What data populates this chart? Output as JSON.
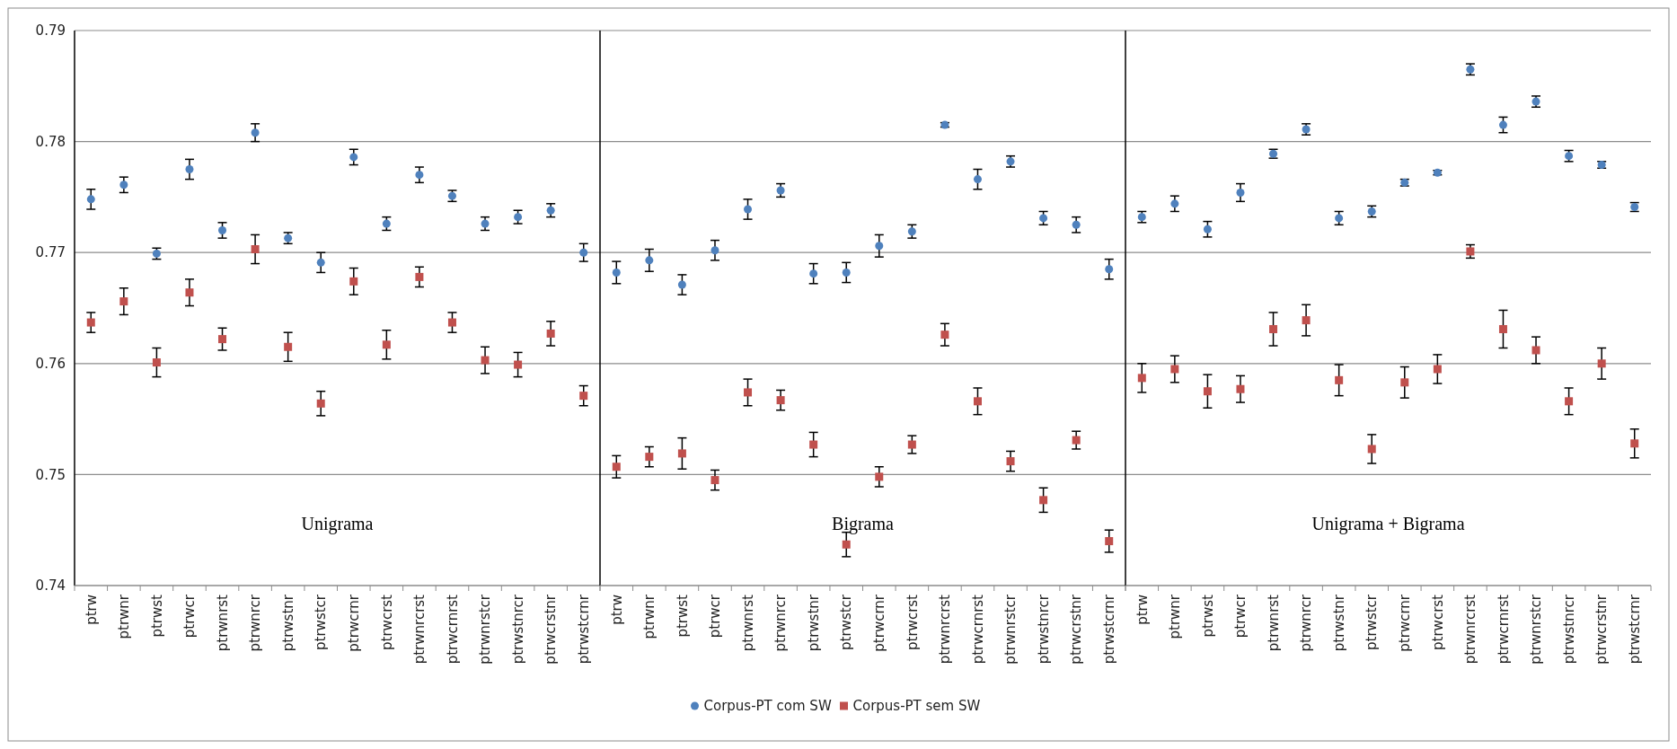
{
  "chart_data": [
    {
      "type": "scatter",
      "categories": [
        "ptrw",
        "ptrwnr",
        "ptrwst",
        "ptrwcr",
        "ptrwnrst",
        "ptrwnrcr",
        "ptrwstnr",
        "ptrwstcr",
        "ptrwcrnr",
        "ptrwcrst",
        "ptrwnrcrst",
        "ptrwcrnrst",
        "ptrwnrstcr",
        "ptrwstnrcr",
        "ptrwcrstnr",
        "ptrwstcrnr"
      ],
      "ylim": [
        0.74,
        0.79
      ],
      "yticks": [
        0.74,
        0.75,
        0.76,
        0.77,
        0.78,
        0.79
      ],
      "grid": "y",
      "legend": "bottom",
      "annotations": [
        "Unigrama"
      ],
      "series": [
        {
          "name": "Corpus-PT com SW",
          "color": "#4f81bd",
          "marker": "circle",
          "values": [
            0.7748,
            0.7761,
            0.7699,
            0.7775,
            0.772,
            0.7808,
            0.7713,
            0.7691,
            0.7786,
            0.7726,
            0.777,
            0.7751,
            0.7726,
            0.7732,
            0.7738,
            0.77
          ],
          "errors": [
            0.0009,
            0.0007,
            0.0005,
            0.0009,
            0.0007,
            0.0008,
            0.0005,
            0.0009,
            0.0007,
            0.0006,
            0.0007,
            0.0005,
            0.0006,
            0.0006,
            0.0006,
            0.0008
          ]
        },
        {
          "name": "Corpus-PT sem SW",
          "color": "#c0504d",
          "marker": "square",
          "values": [
            0.7637,
            0.7656,
            0.7601,
            0.7664,
            0.7622,
            0.7703,
            0.7615,
            0.7564,
            0.7674,
            0.7617,
            0.7678,
            0.7637,
            0.7603,
            0.7599,
            0.7627,
            0.7571
          ],
          "errors": [
            0.0009,
            0.0012,
            0.0013,
            0.0012,
            0.001,
            0.0013,
            0.0013,
            0.0011,
            0.0012,
            0.0013,
            0.0009,
            0.0009,
            0.0012,
            0.0011,
            0.0011,
            0.0009
          ]
        }
      ]
    },
    {
      "type": "scatter",
      "categories": [
        "ptrw",
        "ptrwnr",
        "ptrwst",
        "ptrwcr",
        "ptrwnrst",
        "ptrwnrcr",
        "ptrwstnr",
        "ptrwstcr",
        "ptrwcrnr",
        "ptrwcrst",
        "ptrwnrcrst",
        "ptrwcrnrst",
        "ptrwnrstcr",
        "ptrwstnrcr",
        "ptrwcrstnr",
        "ptrwstcrnr"
      ],
      "ylim": [
        0.74,
        0.79
      ],
      "yticks": [
        0.74,
        0.75,
        0.76,
        0.77,
        0.78,
        0.79
      ],
      "grid": "y",
      "tick_labels": "x",
      "annotations": [
        "Bigrama"
      ],
      "series": [
        {
          "color": "#4f81bd",
          "marker": "circle",
          "values": [
            0.7682,
            0.7693,
            0.7671,
            0.7702,
            0.7739,
            0.7756,
            0.7681,
            0.7682,
            0.7706,
            0.7719,
            0.7815,
            0.7766,
            0.7782,
            0.7731,
            0.7725,
            0.7685
          ],
          "errors": [
            0.001,
            0.001,
            0.0009,
            0.0009,
            0.0009,
            0.0006,
            0.0009,
            0.0009,
            0.001,
            0.0006,
            0.0002,
            0.0009,
            0.0005,
            0.0006,
            0.0007,
            0.0009
          ]
        },
        {
          "color": "#c0504d",
          "marker": "square",
          "values": [
            0.7507,
            0.7516,
            0.7519,
            0.7495,
            0.7574,
            0.7567,
            0.7527,
            0.7437,
            0.7498,
            0.7527,
            0.7626,
            0.7566,
            0.7512,
            0.7477,
            0.7531,
            0.744
          ],
          "errors": [
            0.001,
            0.0009,
            0.0014,
            0.0009,
            0.0012,
            0.0009,
            0.0011,
            0.0011,
            0.0009,
            0.0008,
            0.001,
            0.0012,
            0.0009,
            0.0011,
            0.0008,
            0.001
          ]
        }
      ]
    },
    {
      "type": "scatter",
      "categories": [
        "ptrw",
        "ptrwnr",
        "ptrwst",
        "ptrwcr",
        "ptrwnrst",
        "ptrwnrcr",
        "ptrwstnr",
        "ptrwstcr",
        "ptrwcrnr",
        "ptrwcrst",
        "ptrwnrcrst",
        "ptrwcrnrst",
        "ptrwnrstcr",
        "ptrwstnrcr",
        "ptrwcrstnr",
        "ptrwstcrnr"
      ],
      "ylim": [
        0.74,
        0.79
      ],
      "yticks": [
        0.74,
        0.75,
        0.76,
        0.77,
        0.78,
        0.79
      ],
      "grid": "y",
      "tick_labels": "x",
      "annotations": [
        "Unigrama + Bigrama"
      ],
      "series": [
        {
          "color": "#4f81bd",
          "marker": "circle",
          "values": [
            0.7732,
            0.7744,
            0.7721,
            0.7754,
            0.7789,
            0.7811,
            0.7731,
            0.7737,
            0.7763,
            0.7772,
            0.7865,
            0.7815,
            0.7836,
            0.7787,
            0.7779,
            0.7741
          ],
          "errors": [
            0.0005,
            0.0007,
            0.0007,
            0.0008,
            0.0004,
            0.0005,
            0.0006,
            0.0005,
            0.0003,
            0.0002,
            0.0005,
            0.0007,
            0.0005,
            0.0005,
            0.0003,
            0.0004
          ]
        },
        {
          "color": "#c0504d",
          "marker": "square",
          "values": [
            0.7587,
            0.7595,
            0.7575,
            0.7577,
            0.7631,
            0.7639,
            0.7585,
            0.7523,
            0.7583,
            0.7595,
            0.7701,
            0.7631,
            0.7612,
            0.7566,
            0.76,
            0.7528
          ],
          "errors": [
            0.0013,
            0.0012,
            0.0015,
            0.0012,
            0.0015,
            0.0014,
            0.0014,
            0.0013,
            0.0014,
            0.0013,
            0.0006,
            0.0017,
            0.0012,
            0.0012,
            0.0014,
            0.0013
          ]
        }
      ]
    }
  ]
}
